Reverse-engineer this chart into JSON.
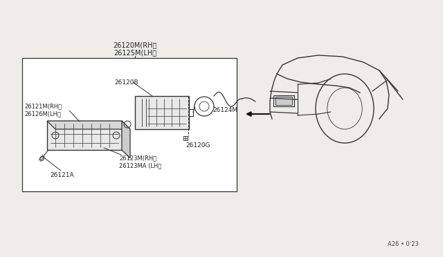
{
  "bg_color": "#f0ede8",
  "line_color": "#333333",
  "white": "#ffffff",
  "diagram_code": "A26 • 0ʼ23",
  "labels": {
    "top_label1": "26120M(RH〉",
    "top_label2": "26125M(LH〉",
    "label_26120B": "26120B",
    "label_26121M_RH": "26121M(RH〉",
    "label_26126M_LH": "26126M(LH〉",
    "label_26124M": "26124M",
    "label_26120G": "26120G",
    "label_26123M_RH": "26123M(RH〉",
    "label_26123MA_LH": "26123MA (LH〉",
    "label_26121A": "26121A"
  }
}
